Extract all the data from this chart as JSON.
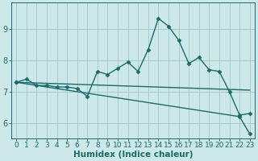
{
  "xlabel": "Humidex (Indice chaleur)",
  "background_color": "#cce8e8",
  "grid_color": "#aacccc",
  "line_color": "#1a6b6b",
  "xlim": [
    -0.5,
    23.5
  ],
  "ylim": [
    5.5,
    9.85
  ],
  "yticks": [
    6,
    7,
    8,
    9
  ],
  "xticks": [
    0,
    1,
    2,
    3,
    4,
    5,
    6,
    7,
    8,
    9,
    10,
    11,
    12,
    13,
    14,
    15,
    16,
    17,
    18,
    19,
    20,
    21,
    22,
    23
  ],
  "series_main": {
    "x": [
      0,
      1,
      2,
      3,
      4,
      5,
      6,
      7,
      8,
      9,
      10,
      11,
      12,
      13,
      14,
      15,
      16,
      17,
      18,
      19,
      20,
      21,
      22,
      23
    ],
    "y": [
      7.3,
      7.4,
      7.2,
      7.2,
      7.15,
      7.15,
      7.1,
      6.85,
      7.65,
      7.55,
      7.75,
      7.95,
      7.65,
      8.35,
      9.35,
      9.1,
      8.65,
      7.9,
      8.1,
      7.7,
      7.65,
      7.0,
      6.25,
      6.3
    ]
  },
  "series_flat": {
    "x": [
      0,
      23
    ],
    "y": [
      7.3,
      7.05
    ]
  },
  "series_slope": {
    "x": [
      0,
      22,
      23
    ],
    "y": [
      7.3,
      6.2,
      5.65
    ]
  },
  "marker": "D",
  "markersize": 2.5,
  "linewidth": 1.0,
  "tick_fontsize": 6.5,
  "xlabel_fontsize": 7.5
}
